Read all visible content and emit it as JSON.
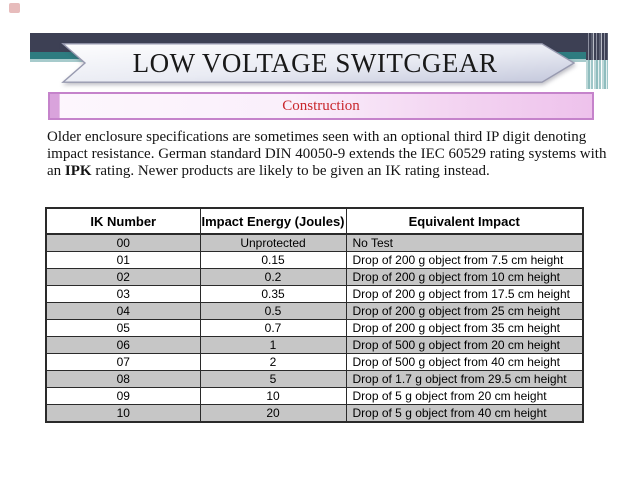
{
  "slide": {
    "title": "LOW VOLTAGE SWITCGEAR",
    "subtitle": "Construction",
    "paragraph": {
      "pre": "Older enclosure specifications are sometimes seen with an optional third IP digit denoting impact resistance. German standard DIN 40050-9 extends the IEC 60529 rating systems with an ",
      "bold": "IPK",
      "post": " rating. Newer products are likely to be given an IK rating instead."
    }
  },
  "colors": {
    "navy": "#3d4054",
    "teal": "#2e7c80",
    "pink_border": "#c583cb",
    "red": "#c9282d",
    "rowgray": "#c6c6c6"
  },
  "table": {
    "columns": [
      "IK Number",
      "Impact Energy (Joules)",
      "Equivalent Impact"
    ],
    "rows": [
      [
        "00",
        "Unprotected",
        "No Test"
      ],
      [
        "01",
        "0.15",
        "Drop of 200 g object from 7.5 cm height"
      ],
      [
        "02",
        "0.2",
        "Drop of 200 g object from 10 cm height"
      ],
      [
        "03",
        "0.35",
        "Drop of 200 g object from 17.5 cm height"
      ],
      [
        "04",
        "0.5",
        "Drop of 200 g object from 25 cm height"
      ],
      [
        "05",
        "0.7",
        "Drop of 200 g object from 35 cm height"
      ],
      [
        "06",
        "1",
        "Drop of 500 g object from 20 cm height"
      ],
      [
        "07",
        "2",
        "Drop of 500 g object from 40 cm height"
      ],
      [
        "08",
        "5",
        "Drop of 1.7 g object from 29.5 cm height"
      ],
      [
        "09",
        "10",
        "Drop of 5 g object from 20 cm height"
      ],
      [
        "10",
        "20",
        "Drop of 5 g object from 40 cm height"
      ]
    ]
  }
}
